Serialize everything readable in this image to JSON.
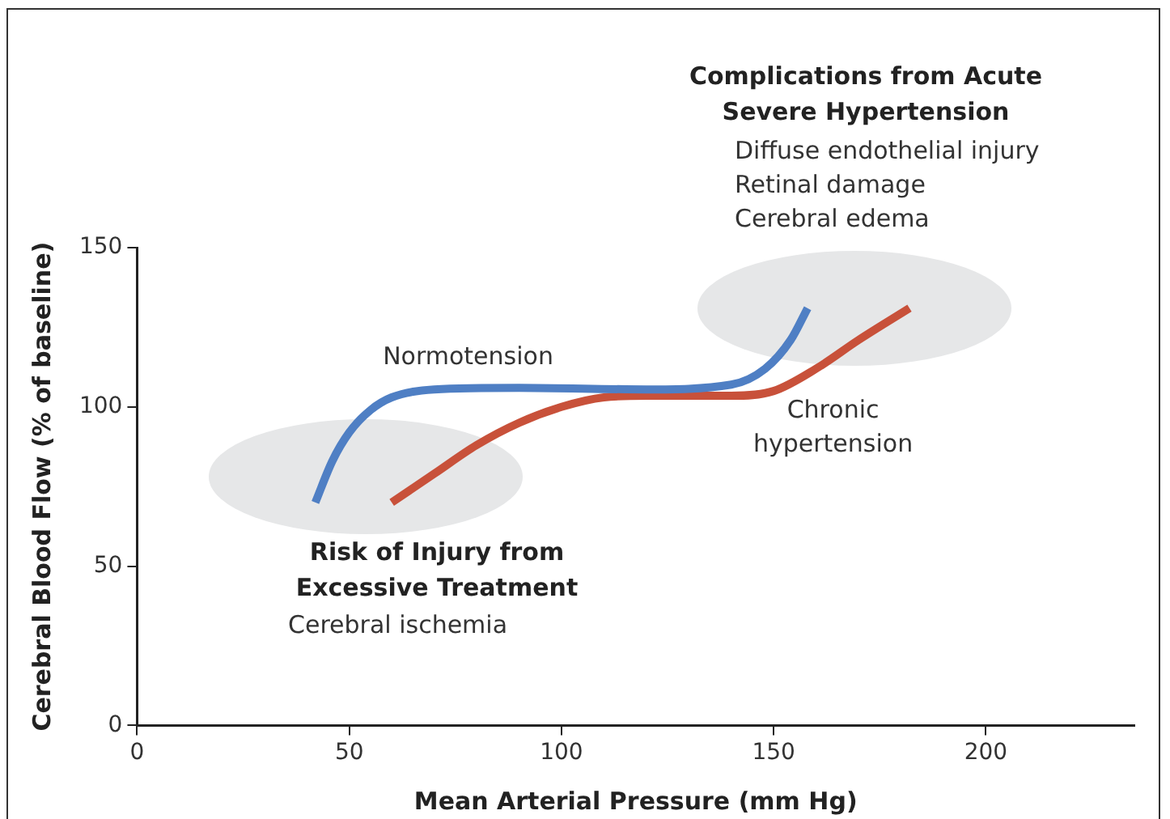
{
  "chart_data": {
    "type": "line",
    "xlabel": "Mean Arterial Pressure (mm Hg)",
    "ylabel": "Cerebral Blood Flow (% of baseline)",
    "xlim": [
      0,
      235
    ],
    "ylim": [
      0,
      150
    ],
    "xticks": [
      0,
      50,
      100,
      150,
      200
    ],
    "yticks": [
      0,
      50,
      100,
      150
    ],
    "grid": false,
    "legend": false,
    "marker": "none",
    "line_style": "solid",
    "series": [
      {
        "name": "Normotension",
        "color": "#4f7fc4",
        "x": [
          42,
          46,
          50,
          55,
          60,
          70,
          90,
          120,
          140,
          148,
          154,
          158
        ],
        "values": [
          70,
          83,
          92,
          99,
          103,
          105.5,
          106,
          105.5,
          107,
          112,
          121,
          131
        ]
      },
      {
        "name": "Chronic hypertension",
        "color": "#c8513a",
        "x": [
          60,
          70,
          80,
          90,
          100,
          110,
          120,
          140,
          150,
          160,
          170,
          182
        ],
        "values": [
          70,
          79,
          88,
          95,
          100,
          103,
          103.5,
          103.5,
          105,
          112,
          121,
          131
        ]
      }
    ],
    "annotations": [
      "Complications from Acute Severe Hypertension",
      "Diffuse endothelial injury",
      "Retinal damage",
      "Cerebral edema",
      "Risk of Injury from Excessive Treatment",
      "Cerebral ischemia"
    ]
  }
}
